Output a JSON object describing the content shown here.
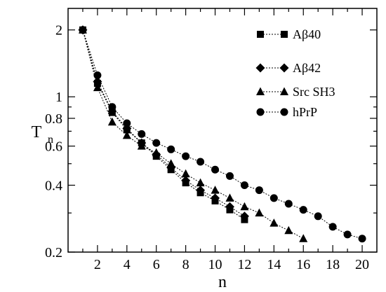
{
  "chart_data": {
    "type": "line",
    "xlabel": "n",
    "ylabel": "T",
    "ylabel_subscript": "n",
    "xlim": [
      0,
      21
    ],
    "ylim": [
      0.2,
      2.5
    ],
    "yscale": "log",
    "grid": false,
    "legend_position": "top-right",
    "x_ticks": [
      2,
      4,
      6,
      8,
      10,
      12,
      14,
      16,
      18,
      20
    ],
    "x_tick_labels": [
      "2",
      "4",
      "6",
      "8",
      "10",
      "12",
      "14",
      "16",
      "18",
      "20"
    ],
    "y_ticks": [
      0.2,
      0.4,
      0.6,
      0.8,
      1,
      2
    ],
    "y_tick_labels": [
      "0.2",
      "0.4",
      "0.6",
      "0.8",
      "1",
      "2"
    ],
    "series": [
      {
        "name": "Aβ40",
        "marker": "square",
        "x": [
          1,
          2,
          3,
          4,
          5,
          6,
          7,
          8,
          9,
          10,
          11,
          12
        ],
        "y": [
          2.0,
          1.15,
          0.85,
          0.71,
          0.62,
          0.54,
          0.47,
          0.41,
          0.37,
          0.34,
          0.31,
          0.28
        ]
      },
      {
        "name": "Aβ42",
        "marker": "diamond",
        "x": [
          1,
          2,
          3,
          4,
          5,
          6,
          7,
          8,
          9,
          10,
          11,
          12
        ],
        "y": [
          2.0,
          1.17,
          0.86,
          0.72,
          0.62,
          0.55,
          0.48,
          0.42,
          0.38,
          0.35,
          0.32,
          0.29
        ]
      },
      {
        "name": "Src SH3",
        "marker": "triangle",
        "x": [
          1,
          2,
          3,
          4,
          5,
          6,
          7,
          8,
          9,
          10,
          11,
          12,
          13,
          14,
          15,
          16
        ],
        "y": [
          2.0,
          1.1,
          0.77,
          0.67,
          0.6,
          0.56,
          0.5,
          0.45,
          0.41,
          0.38,
          0.35,
          0.32,
          0.3,
          0.27,
          0.25,
          0.23
        ]
      },
      {
        "name": "hPrP",
        "marker": "circle",
        "x": [
          1,
          2,
          3,
          4,
          5,
          6,
          7,
          8,
          9,
          10,
          11,
          12,
          13,
          14,
          15,
          16,
          17,
          18,
          19,
          20
        ],
        "y": [
          2.0,
          1.25,
          0.9,
          0.76,
          0.68,
          0.62,
          0.58,
          0.54,
          0.51,
          0.47,
          0.44,
          0.4,
          0.38,
          0.35,
          0.33,
          0.31,
          0.29,
          0.26,
          0.24,
          0.23
        ]
      }
    ]
  }
}
